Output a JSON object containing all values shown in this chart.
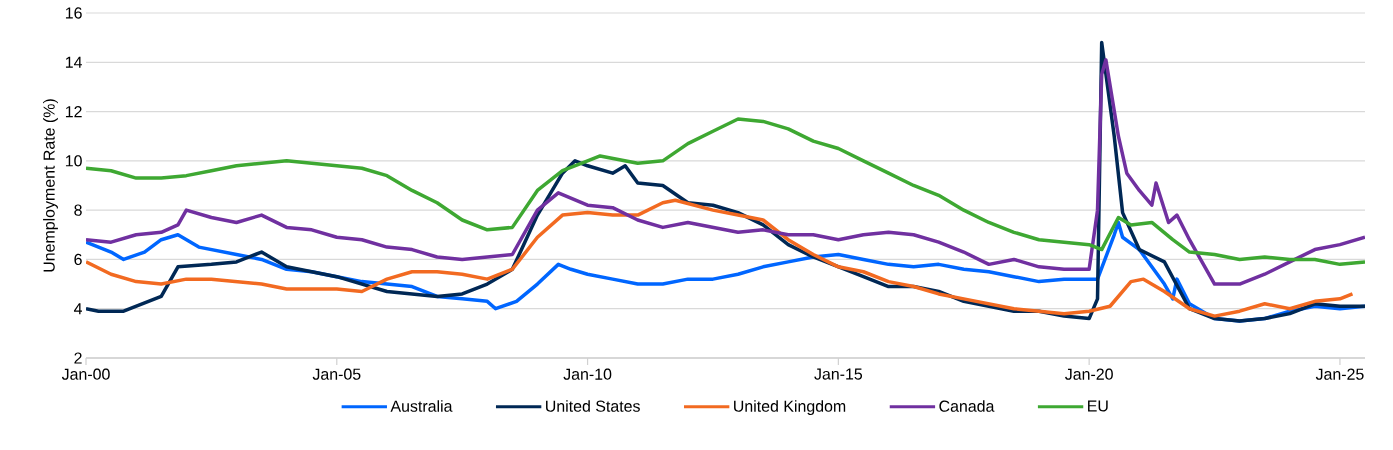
{
  "chart_data": {
    "type": "line",
    "ylabel": "Unemployment Rate (%)",
    "xlim": [
      "2000-01",
      "2025-07"
    ],
    "ylim": [
      2,
      16
    ],
    "xticks": [
      {
        "value": "2000-01",
        "label": "Jan-00"
      },
      {
        "value": "2005-01",
        "label": "Jan-05"
      },
      {
        "value": "2010-01",
        "label": "Jan-10"
      },
      {
        "value": "2015-01",
        "label": "Jan-15"
      },
      {
        "value": "2020-01",
        "label": "Jan-20"
      },
      {
        "value": "2025-01",
        "label": "Jan-25"
      }
    ],
    "yticks": [
      2,
      4,
      6,
      8,
      10,
      12,
      14,
      16
    ],
    "grid": "y",
    "legend": "bottom",
    "series": [
      {
        "name": "Australia",
        "color": "#0066ff",
        "x": [
          "2000-01",
          "2000-07",
          "2000-10",
          "2001-03",
          "2001-07",
          "2001-11",
          "2002-04",
          "2003-01",
          "2003-07",
          "2004-01",
          "2004-07",
          "2005-01",
          "2005-07",
          "2006-01",
          "2006-07",
          "2007-01",
          "2007-07",
          "2008-01",
          "2008-03",
          "2008-08",
          "2009-01",
          "2009-06",
          "2009-09",
          "2010-01",
          "2010-07",
          "2011-01",
          "2011-07",
          "2012-01",
          "2012-07",
          "2013-01",
          "2013-07",
          "2014-01",
          "2014-07",
          "2015-01",
          "2015-07",
          "2016-01",
          "2016-07",
          "2017-01",
          "2017-07",
          "2018-01",
          "2018-07",
          "2019-01",
          "2019-07",
          "2020-01",
          "2020-03",
          "2020-07",
          "2020-08",
          "2020-09",
          "2021-01",
          "2021-07",
          "2021-09",
          "2021-10",
          "2022-01",
          "2022-07",
          "2023-01",
          "2023-07",
          "2024-01",
          "2024-07",
          "2025-01",
          "2025-07"
        ],
        "values": [
          6.7,
          6.3,
          6.0,
          6.3,
          6.8,
          7.0,
          6.5,
          6.2,
          6.0,
          5.6,
          5.5,
          5.3,
          5.1,
          5.0,
          4.9,
          4.5,
          4.4,
          4.3,
          4.0,
          4.3,
          5.0,
          5.8,
          5.6,
          5.4,
          5.2,
          5.0,
          5.0,
          5.2,
          5.2,
          5.4,
          5.7,
          5.9,
          6.1,
          6.2,
          6.0,
          5.8,
          5.7,
          5.8,
          5.6,
          5.5,
          5.3,
          5.1,
          5.2,
          5.2,
          5.2,
          7.0,
          7.5,
          6.9,
          6.4,
          5.0,
          4.4,
          5.2,
          4.2,
          3.6,
          3.5,
          3.6,
          3.9,
          4.1,
          4.0,
          4.1
        ]
      },
      {
        "name": "United States",
        "color": "#002855",
        "x": [
          "2000-01",
          "2000-04",
          "2000-10",
          "2001-07",
          "2001-11",
          "2002-07",
          "2003-01",
          "2003-07",
          "2004-01",
          "2004-07",
          "2005-01",
          "2005-07",
          "2006-01",
          "2006-07",
          "2007-01",
          "2007-07",
          "2008-01",
          "2008-07",
          "2009-01",
          "2009-07",
          "2009-10",
          "2010-01",
          "2010-07",
          "2010-10",
          "2011-01",
          "2011-07",
          "2012-01",
          "2012-07",
          "2013-01",
          "2013-07",
          "2014-01",
          "2014-07",
          "2015-01",
          "2015-07",
          "2016-01",
          "2016-07",
          "2017-01",
          "2017-07",
          "2018-01",
          "2018-07",
          "2019-01",
          "2019-07",
          "2020-01",
          "2020-03",
          "2020-04",
          "2020-07",
          "2020-09",
          "2021-01",
          "2021-07",
          "2022-01",
          "2022-07",
          "2023-01",
          "2023-07",
          "2024-01",
          "2024-07",
          "2025-01",
          "2025-07"
        ],
        "values": [
          4.0,
          3.9,
          3.9,
          4.5,
          5.7,
          5.8,
          5.9,
          6.3,
          5.7,
          5.5,
          5.3,
          5.0,
          4.7,
          4.6,
          4.5,
          4.6,
          5.0,
          5.6,
          7.8,
          9.5,
          10.0,
          9.8,
          9.5,
          9.8,
          9.1,
          9.0,
          8.3,
          8.2,
          7.9,
          7.4,
          6.6,
          6.1,
          5.7,
          5.3,
          4.9,
          4.9,
          4.7,
          4.3,
          4.1,
          3.9,
          3.9,
          3.7,
          3.6,
          4.4,
          14.8,
          11.0,
          7.9,
          6.4,
          5.9,
          4.0,
          3.6,
          3.5,
          3.6,
          3.8,
          4.2,
          4.1,
          4.1
        ]
      },
      {
        "name": "United Kingdom",
        "color": "#f26a21",
        "x": [
          "2000-01",
          "2000-07",
          "2001-01",
          "2001-07",
          "2002-01",
          "2002-07",
          "2003-01",
          "2003-07",
          "2004-01",
          "2004-07",
          "2005-01",
          "2005-07",
          "2006-01",
          "2006-07",
          "2007-01",
          "2007-07",
          "2008-01",
          "2008-07",
          "2009-01",
          "2009-07",
          "2010-01",
          "2010-07",
          "2011-01",
          "2011-07",
          "2011-10",
          "2012-07",
          "2013-01",
          "2013-07",
          "2014-01",
          "2014-07",
          "2015-01",
          "2015-07",
          "2016-01",
          "2016-07",
          "2017-01",
          "2017-07",
          "2018-01",
          "2018-07",
          "2019-01",
          "2019-07",
          "2020-01",
          "2020-06",
          "2020-11",
          "2021-02",
          "2021-07",
          "2022-01",
          "2022-07",
          "2023-01",
          "2023-07",
          "2024-01",
          "2024-07",
          "2025-01",
          "2025-04"
        ],
        "values": [
          5.9,
          5.4,
          5.1,
          5.0,
          5.2,
          5.2,
          5.1,
          5.0,
          4.8,
          4.8,
          4.8,
          4.7,
          5.2,
          5.5,
          5.5,
          5.4,
          5.2,
          5.6,
          6.9,
          7.8,
          7.9,
          7.8,
          7.8,
          8.3,
          8.4,
          8.0,
          7.8,
          7.6,
          6.8,
          6.2,
          5.7,
          5.5,
          5.1,
          4.9,
          4.6,
          4.4,
          4.2,
          4.0,
          3.9,
          3.8,
          3.9,
          4.1,
          5.1,
          5.2,
          4.7,
          4.0,
          3.7,
          3.9,
          4.2,
          4.0,
          4.3,
          4.4,
          4.6
        ]
      },
      {
        "name": "Canada",
        "color": "#7030a0",
        "x": [
          "2000-01",
          "2000-07",
          "2001-01",
          "2001-07",
          "2001-11",
          "2002-01",
          "2002-07",
          "2003-01",
          "2003-07",
          "2004-01",
          "2004-07",
          "2005-01",
          "2005-07",
          "2006-01",
          "2006-07",
          "2007-01",
          "2007-07",
          "2008-01",
          "2008-07",
          "2009-01",
          "2009-06",
          "2010-01",
          "2010-07",
          "2011-01",
          "2011-07",
          "2012-01",
          "2012-07",
          "2013-01",
          "2013-07",
          "2014-01",
          "2014-07",
          "2015-01",
          "2015-07",
          "2016-01",
          "2016-07",
          "2017-01",
          "2017-07",
          "2018-01",
          "2018-07",
          "2019-01",
          "2019-07",
          "2020-01",
          "2020-03",
          "2020-04",
          "2020-05",
          "2020-08",
          "2020-10",
          "2021-01",
          "2021-04",
          "2021-05",
          "2021-08",
          "2021-10",
          "2022-01",
          "2022-04",
          "2022-07",
          "2023-01",
          "2023-07",
          "2024-01",
          "2024-07",
          "2025-01",
          "2025-07"
        ],
        "values": [
          6.8,
          6.7,
          7.0,
          7.1,
          7.4,
          8.0,
          7.7,
          7.5,
          7.8,
          7.3,
          7.2,
          6.9,
          6.8,
          6.5,
          6.4,
          6.1,
          6.0,
          6.1,
          6.2,
          8.0,
          8.7,
          8.2,
          8.1,
          7.6,
          7.3,
          7.5,
          7.3,
          7.1,
          7.2,
          7.0,
          7.0,
          6.8,
          7.0,
          7.1,
          7.0,
          6.7,
          6.3,
          5.8,
          6.0,
          5.7,
          5.6,
          5.6,
          8.0,
          13.5,
          14.1,
          11.0,
          9.5,
          8.8,
          8.2,
          9.1,
          7.5,
          7.8,
          6.8,
          5.9,
          5.0,
          5.0,
          5.4,
          5.9,
          6.4,
          6.6,
          6.9
        ]
      },
      {
        "name": "EU",
        "color": "#3ea832",
        "x": [
          "2000-01",
          "2000-07",
          "2001-01",
          "2001-07",
          "2002-01",
          "2002-07",
          "2003-01",
          "2003-07",
          "2004-01",
          "2004-07",
          "2005-01",
          "2005-07",
          "2006-01",
          "2006-07",
          "2007-01",
          "2007-07",
          "2008-01",
          "2008-07",
          "2009-01",
          "2009-07",
          "2010-01",
          "2010-04",
          "2011-01",
          "2011-07",
          "2012-01",
          "2012-07",
          "2013-01",
          "2013-07",
          "2014-01",
          "2014-07",
          "2015-01",
          "2015-07",
          "2016-01",
          "2016-07",
          "2017-01",
          "2017-07",
          "2018-01",
          "2018-07",
          "2019-01",
          "2019-07",
          "2020-01",
          "2020-04",
          "2020-08",
          "2020-11",
          "2021-04",
          "2021-09",
          "2022-01",
          "2022-07",
          "2023-01",
          "2023-07",
          "2024-01",
          "2024-07",
          "2025-01",
          "2025-07"
        ],
        "values": [
          9.7,
          9.6,
          9.3,
          9.3,
          9.4,
          9.6,
          9.8,
          9.9,
          10.0,
          9.9,
          9.8,
          9.7,
          9.4,
          8.8,
          8.3,
          7.6,
          7.2,
          7.3,
          8.8,
          9.6,
          10.0,
          10.2,
          9.9,
          10.0,
          10.7,
          11.2,
          11.7,
          11.6,
          11.3,
          10.8,
          10.5,
          10.0,
          9.5,
          9.0,
          8.6,
          8.0,
          7.5,
          7.1,
          6.8,
          6.7,
          6.6,
          6.4,
          7.7,
          7.4,
          7.5,
          6.8,
          6.3,
          6.2,
          6.0,
          6.1,
          6.0,
          6.0,
          5.8,
          5.9
        ]
      }
    ]
  }
}
